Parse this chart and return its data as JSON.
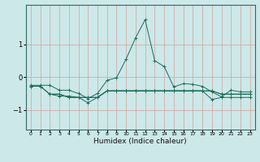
{
  "xlabel": "Humidex (Indice chaleur)",
  "background_color": "#cce8e8",
  "grid_color": "#d4a0a0",
  "line_color": "#1a6b5a",
  "xlim": [
    -0.5,
    23.5
  ],
  "ylim": [
    -1.6,
    2.2
  ],
  "yticks": [
    -1,
    0,
    1
  ],
  "xticks": [
    0,
    1,
    2,
    3,
    4,
    5,
    6,
    7,
    8,
    9,
    10,
    11,
    12,
    13,
    14,
    15,
    16,
    17,
    18,
    19,
    20,
    21,
    22,
    23
  ],
  "series": [
    {
      "x": [
        0,
        1,
        2,
        3,
        4,
        5,
        6,
        7,
        8,
        9,
        10,
        11,
        12,
        13,
        14,
        15,
        16,
        17,
        18,
        19,
        20,
        21,
        22,
        23
      ],
      "y": [
        -0.25,
        -0.25,
        -0.25,
        -0.4,
        -0.4,
        -0.5,
        -0.65,
        -0.5,
        -0.1,
        -0.02,
        0.55,
        1.2,
        1.75,
        0.5,
        0.32,
        -0.3,
        -0.2,
        -0.22,
        -0.28,
        -0.45,
        -0.6,
        -0.4,
        -0.45,
        -0.45
      ]
    },
    {
      "x": [
        0,
        1,
        2,
        3,
        4,
        5,
        6,
        7,
        8,
        9,
        10,
        11,
        12,
        13,
        14,
        15,
        16,
        17,
        18,
        19,
        20,
        21,
        22,
        23
      ],
      "y": [
        -0.28,
        -0.28,
        -0.52,
        -0.52,
        -0.62,
        -0.62,
        -0.62,
        -0.62,
        -0.42,
        -0.42,
        -0.42,
        -0.42,
        -0.42,
        -0.42,
        -0.42,
        -0.42,
        -0.42,
        -0.42,
        -0.42,
        -0.42,
        -0.52,
        -0.52,
        -0.52,
        -0.52
      ]
    },
    {
      "x": [
        0,
        1,
        2,
        3,
        4,
        5,
        6,
        7,
        8,
        9,
        10,
        11,
        12,
        13,
        14,
        15,
        16,
        17,
        18,
        19,
        20,
        21,
        22,
        23
      ],
      "y": [
        -0.28,
        -0.28,
        -0.52,
        -0.58,
        -0.58,
        -0.62,
        -0.78,
        -0.62,
        -0.42,
        -0.42,
        -0.42,
        -0.42,
        -0.42,
        -0.42,
        -0.42,
        -0.42,
        -0.42,
        -0.42,
        -0.42,
        -0.68,
        -0.62,
        -0.62,
        -0.62,
        -0.62
      ]
    },
    {
      "x": [
        2,
        3,
        4,
        5,
        6,
        7,
        8,
        9,
        10,
        11,
        12,
        13,
        14,
        15,
        16,
        17,
        18,
        19,
        20,
        21,
        22,
        23
      ],
      "y": [
        -0.52,
        -0.52,
        -0.62,
        -0.62,
        -0.62,
        -0.62,
        -0.42,
        -0.42,
        -0.42,
        -0.42,
        -0.42,
        -0.42,
        -0.42,
        -0.42,
        -0.42,
        -0.42,
        -0.42,
        -0.42,
        -0.52,
        -0.52,
        -0.52,
        -0.52
      ]
    }
  ]
}
